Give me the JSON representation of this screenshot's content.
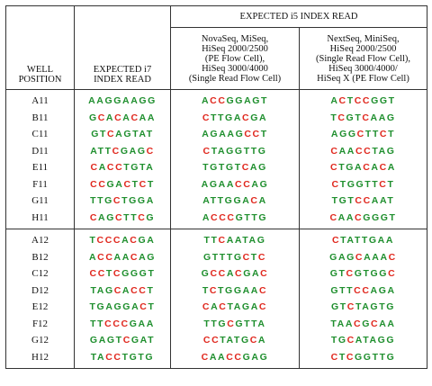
{
  "headers": {
    "well_position": "WELL\nPOSITION",
    "i7": "EXPECTED i7\nINDEX READ",
    "i5_top": "EXPECTED i5 INDEX READ",
    "i5_col1": "NovaSeq, MiSeq,\nHiSeq 2000/2500\n(PE Flow Cell),\nHiSeq 3000/4000\n(Single Read Flow Cell)",
    "i5_col2": "NextSeq, MiniSeq,\nHiSeq 2000/2500\n(Single Read Flow Cell),\nHiSeq 3000/4000/\nHiSeq X (PE Flow Cell)"
  },
  "colors": {
    "base_A_G_T": "#1f8f2e",
    "base_C": "#e0281e"
  },
  "groups": [
    [
      {
        "well": "A11",
        "i7": "AAGGAAGG",
        "i5a": "ACCGGAGT",
        "i5b": "ACTCCGGT"
      },
      {
        "well": "B11",
        "i7": "GCACACAA",
        "i5a": "CTTGACGA",
        "i5b": "TCGTCAAG"
      },
      {
        "well": "C11",
        "i7": "GTCAGTAT",
        "i5a": "AGAAGCCT",
        "i5b": "AGGCTTCT"
      },
      {
        "well": "D11",
        "i7": "ATTCGAGC",
        "i5a": "CTAGGTTG",
        "i5b": "CAACCTAG"
      },
      {
        "well": "E11",
        "i7": "CACCTGTA",
        "i5a": "TGTGTCAG",
        "i5b": "CTGACACA"
      },
      {
        "well": "F11",
        "i7": "CCGACTCT",
        "i5a": "AGAACCAG",
        "i5b": "CTGGTTCT"
      },
      {
        "well": "G11",
        "i7": "TTGCTGGA",
        "i5a": "ATTGGACA",
        "i5b": "TGTCCAAT"
      },
      {
        "well": "H11",
        "i7": "CAGCTTCG",
        "i5a": "ACCCGTTG",
        "i5b": "CAACGGGT"
      }
    ],
    [
      {
        "well": "A12",
        "i7": "TCCCACGA",
        "i5a": "TTCAATAG",
        "i5b": "CTATTGAA"
      },
      {
        "well": "B12",
        "i7": "ACCAACAG",
        "i5a": "GTTTGCTC",
        "i5b": "GAGCAAAC"
      },
      {
        "well": "C12",
        "i7": "CCTCGGGT",
        "i5a": "GCCACGAC",
        "i5b": "GTCGTGGC"
      },
      {
        "well": "D12",
        "i7": "TAGCACCT",
        "i5a": "TCTGGAAC",
        "i5b": "GTTCCAGA"
      },
      {
        "well": "E12",
        "i7": "TGAGGACT",
        "i5a": "CACTAGAC",
        "i5b": "GTCTAGTG"
      },
      {
        "well": "F12",
        "i7": "TTCCCGAA",
        "i5a": "TTGCGTTA",
        "i5b": "TAACGCAA"
      },
      {
        "well": "G12",
        "i7": "GAGTCGAT",
        "i5a": "CCTATGCA",
        "i5b": "TGCATAGG"
      },
      {
        "well": "H12",
        "i7": "TACCTGTG",
        "i5a": "CAACCGAG",
        "i5b": "CTCGGTTG"
      }
    ]
  ]
}
